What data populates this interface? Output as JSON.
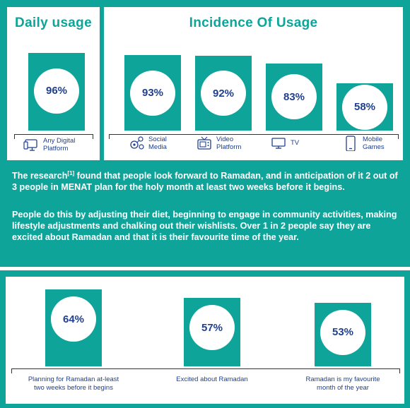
{
  "colors": {
    "teal": "#0ea49a",
    "navy": "#1f3f8f"
  },
  "daily_usage": {
    "title": "Daily usage",
    "category": "Any Digital\nPlatform",
    "icon": "computer-icon"
  },
  "incidence": {
    "title": "Incidence Of Usage",
    "categories": [
      {
        "label": "Social\nMedia",
        "icon": "social-media-icon"
      },
      {
        "label": "Video\nPlatform",
        "icon": "video-platform-icon"
      },
      {
        "label": "TV",
        "icon": "tv-icon"
      },
      {
        "label": "Mobile\nGames",
        "icon": "mobile-icon"
      }
    ]
  },
  "text": {
    "p1_before": "The research",
    "p1_sup": "[1]",
    "p1_after": " found that people look forward to Ramadan, and in anticipation of it 2 out of 3 people in MENAT plan for the holy month at least two weeks before it begins.",
    "p2": "People do this by adjusting their diet, beginning to engage in community activities, making lifestyle adjustments and chalking out their wishlists. Over 1 in 2 people say they are excited about Ramadan and that it is their favourite time of the year."
  },
  "chart_data": [
    {
      "type": "bar",
      "title": "Daily usage",
      "categories": [
        "Any Digital Platform"
      ],
      "values": [
        96
      ],
      "value_labels": [
        "96%"
      ],
      "ylim": [
        0,
        100
      ]
    },
    {
      "type": "bar",
      "title": "Incidence Of Usage",
      "categories": [
        "Social Media",
        "Video Platform",
        "TV",
        "Mobile Games"
      ],
      "values": [
        93,
        92,
        83,
        58
      ],
      "value_labels": [
        "93%",
        "92%",
        "83%",
        "58%"
      ],
      "ylim": [
        0,
        100
      ]
    },
    {
      "type": "bar",
      "title": "",
      "categories": [
        "Planning for Ramadan at-least\ntwo weeks before it begins",
        "Excited about Ramadan",
        "Ramadan is my favourite\nmonth of the year"
      ],
      "values": [
        64,
        57,
        53
      ],
      "value_labels": [
        "64%",
        "57%",
        "53%"
      ],
      "ylim": [
        0,
        100
      ]
    }
  ]
}
